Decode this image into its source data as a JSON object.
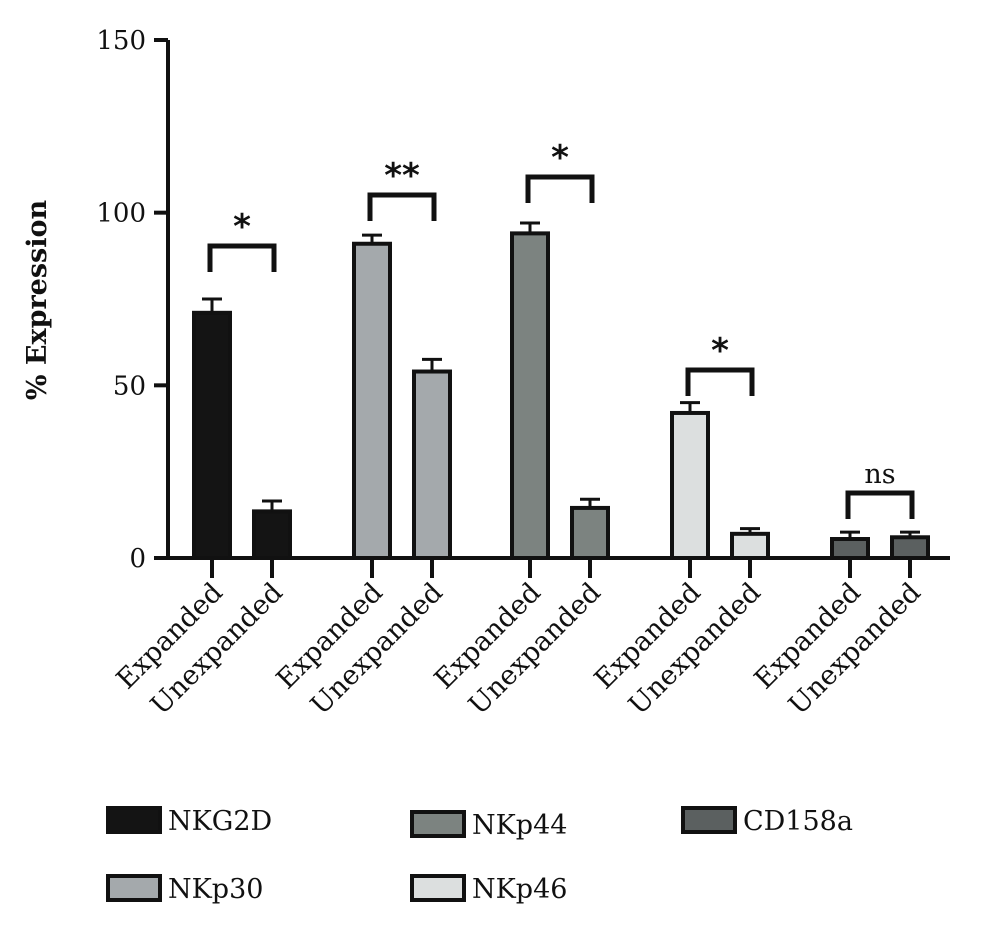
{
  "chart_data": {
    "type": "bar",
    "ylabel": "% Expression",
    "xlabel": "",
    "ylim": [
      0,
      150
    ],
    "yticks": [
      0,
      50,
      100,
      150
    ],
    "grid": false,
    "legend_position": "bottom",
    "group_labels": [
      "Expanded",
      "Unexpanded"
    ],
    "series": [
      {
        "name": "NKG2D",
        "color": "#141414",
        "values": [
          71,
          13.5
        ],
        "errors": [
          4,
          3
        ],
        "significance": "*"
      },
      {
        "name": "NKp30",
        "color": "#a4a9ac",
        "values": [
          91,
          54
        ],
        "errors": [
          2.5,
          3.5
        ],
        "significance": "**"
      },
      {
        "name": "NKp44",
        "color": "#7c8380",
        "values": [
          94,
          14.5
        ],
        "errors": [
          3,
          2.5
        ],
        "significance": "*"
      },
      {
        "name": "NKp46",
        "color": "#dcdfdf",
        "values": [
          42,
          7
        ],
        "errors": [
          3,
          1.5
        ],
        "significance": "*"
      },
      {
        "name": "CD158a",
        "color": "#5b6060",
        "values": [
          5.5,
          6
        ],
        "errors": [
          2,
          1.5
        ],
        "significance": "ns"
      }
    ]
  }
}
